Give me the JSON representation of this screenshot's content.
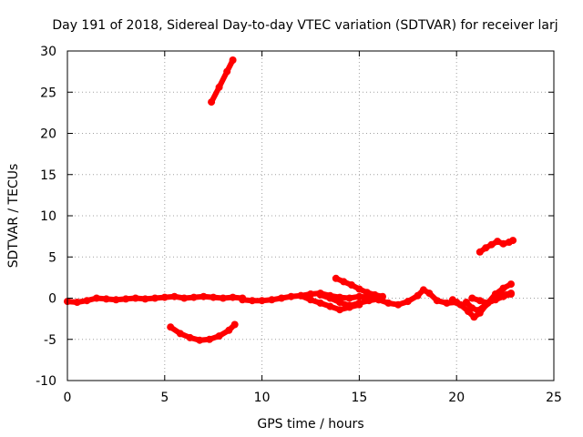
{
  "chart_data": {
    "type": "scatter",
    "title": "Day 191 of 2018, Sidereal Day-to-day VTEC variation (SDTVAR) for receiver larj",
    "xlabel": "GPS time / hours",
    "ylabel": "SDTVAR / TECUs",
    "xlim": [
      0,
      25
    ],
    "ylim": [
      -10,
      30
    ],
    "xticks": [
      "0",
      "5",
      "10",
      "15",
      "20",
      "25"
    ],
    "yticks": [
      "-10",
      "-5",
      "0",
      "5",
      "10",
      "15",
      "20",
      "25",
      "30"
    ],
    "grid": true,
    "color": "#ff0000",
    "series": [
      {
        "name": "arc-main-1",
        "x": [
          0.0,
          0.5,
          1.0,
          1.5,
          2.0,
          2.5,
          3.0,
          3.5,
          4.0,
          4.5,
          5.0,
          5.5,
          6.0,
          6.5,
          7.0,
          7.5,
          8.0,
          8.5,
          9.0
        ],
        "y": [
          -0.4,
          -0.5,
          -0.3,
          0.0,
          -0.1,
          -0.2,
          -0.1,
          0.0,
          -0.1,
          0.0,
          0.1,
          0.2,
          0.0,
          0.1,
          0.2,
          0.1,
          0.0,
          0.1,
          0.0
        ]
      },
      {
        "name": "arc-main-2",
        "x": [
          9.0,
          9.5,
          10.0,
          10.5,
          11.0,
          11.5,
          12.0,
          12.5,
          13.0,
          13.5,
          14.0,
          14.5,
          15.0,
          15.5,
          16.0
        ],
        "y": [
          -0.2,
          -0.3,
          -0.3,
          -0.2,
          0.0,
          0.2,
          0.3,
          0.5,
          0.6,
          0.3,
          0.1,
          0.0,
          0.2,
          0.1,
          -0.2
        ]
      },
      {
        "name": "arc-main-3",
        "x": [
          16.0,
          16.5,
          17.0,
          17.5,
          18.0,
          18.3,
          18.6,
          19.0,
          19.5,
          20.0
        ],
        "y": [
          -0.2,
          -0.6,
          -0.8,
          -0.4,
          0.3,
          1.0,
          0.6,
          -0.3,
          -0.6,
          -0.5
        ]
      },
      {
        "name": "arc-dip-1",
        "x": [
          12.0,
          12.5,
          13.0,
          13.5,
          14.0,
          14.5,
          15.0
        ],
        "y": [
          0.3,
          -0.2,
          -0.6,
          -1.0,
          -1.4,
          -1.1,
          -0.8
        ]
      },
      {
        "name": "arc-dip-2",
        "x": [
          13.0,
          13.5,
          14.0,
          14.5,
          15.0,
          15.5,
          16.0
        ],
        "y": [
          0.4,
          0.0,
          -0.5,
          -0.9,
          -0.6,
          -0.3,
          -0.1
        ]
      },
      {
        "name": "arc-15h",
        "x": [
          13.8,
          14.2,
          14.6,
          15.0,
          15.4,
          15.8,
          16.2
        ],
        "y": [
          2.4,
          2.0,
          1.6,
          1.1,
          0.7,
          0.4,
          0.2
        ]
      },
      {
        "name": "arc-morning",
        "x": [
          5.3,
          5.8,
          6.3,
          6.8,
          7.3,
          7.8,
          8.3,
          8.6
        ],
        "y": [
          -3.5,
          -4.3,
          -4.8,
          -5.1,
          -5.0,
          -4.6,
          -3.9,
          -3.2
        ]
      },
      {
        "name": "arc-high",
        "x": [
          7.4,
          7.8,
          8.2,
          8.5
        ],
        "y": [
          23.8,
          25.6,
          27.5,
          28.9
        ]
      },
      {
        "name": "arc-late-a",
        "x": [
          19.8,
          20.2,
          20.6,
          20.9,
          21.2,
          21.6,
          22.0,
          22.4,
          22.8
        ],
        "y": [
          -0.2,
          -0.8,
          -1.6,
          -2.3,
          -1.8,
          -0.6,
          0.5,
          1.2,
          1.7
        ]
      },
      {
        "name": "arc-late-b",
        "x": [
          20.5,
          20.8,
          21.1,
          21.5,
          21.9,
          22.3,
          22.8
        ],
        "y": [
          -0.5,
          -1.2,
          -1.5,
          -0.8,
          0.0,
          0.4,
          0.6
        ]
      },
      {
        "name": "arc-late-c",
        "x": [
          20.8,
          21.2,
          21.6,
          22.0,
          22.4,
          22.8
        ],
        "y": [
          0.0,
          -0.3,
          -0.6,
          -0.2,
          0.2,
          0.5
        ]
      },
      {
        "name": "arc-late-high",
        "x": [
          21.2,
          21.5,
          21.8,
          22.1,
          22.4,
          22.7,
          22.9
        ],
        "y": [
          5.6,
          6.1,
          6.5,
          6.9,
          6.6,
          6.8,
          7.0
        ]
      }
    ]
  }
}
